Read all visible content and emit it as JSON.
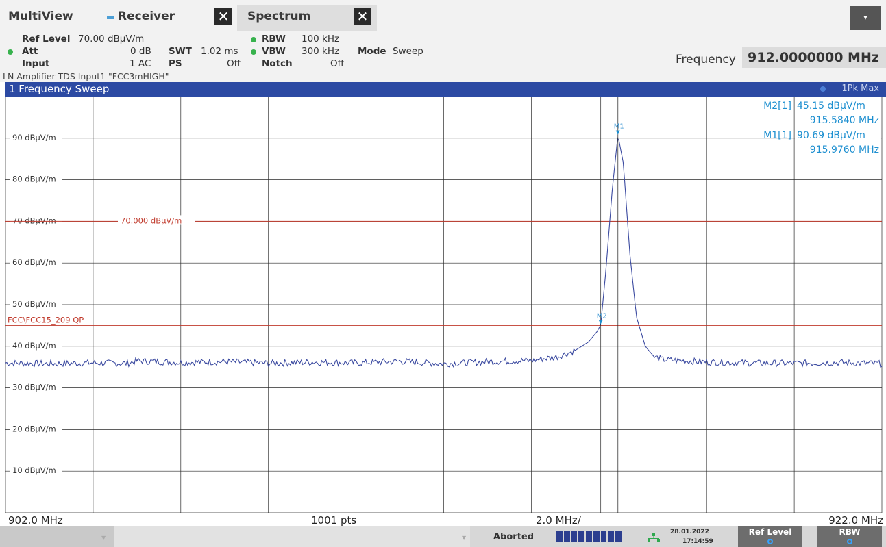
{
  "tabs": {
    "multiview_label": "MultiView",
    "receiver_label": "Receiver",
    "spectrum_label": "Spectrum",
    "close_glyph": "✕",
    "menu_glyph": "▾"
  },
  "settings": {
    "ref_level_label": "Ref Level",
    "ref_level_value": "70.00 dBµV/m",
    "att_label": "Att",
    "att_value": "0 dB",
    "input_label": "Input",
    "input_value": "1 AC",
    "swt_label": "SWT",
    "swt_value": "1.02 ms",
    "ps_label": "PS",
    "ps_value": "Off",
    "rbw_label": "RBW",
    "rbw_value": "100 kHz",
    "vbw_label": "VBW",
    "vbw_value": "300 kHz",
    "notch_label": "Notch",
    "notch_value": "Off",
    "mode_label": "Mode",
    "mode_value": "Sweep",
    "frequency_label": "Frequency",
    "frequency_value": "912.0000000 MHz",
    "info_line": "LN Amplifier TDS Input1 \"FCC3mHIGH\""
  },
  "diagram": {
    "title": "1 Frequency Sweep",
    "trace_label": "1Pk Max",
    "y_labels": [
      "90 dBµV/m",
      "80 dBµV/m",
      "70 dBµV/m",
      "60 dBµV/m",
      "50 dBµV/m",
      "40 dBµV/m",
      "30 dBµV/m",
      "20 dBµV/m",
      "10 dBµV/m"
    ],
    "ref_line_label": "70.000 dBµV/m",
    "limit_line_label": "FCC\\FCC15_209 QP",
    "marker_table": [
      {
        "name": "M2[1]",
        "level": "45.15 dBµV/m",
        "freq": "915.5840 MHz"
      },
      {
        "name": "M1[1]",
        "level": "90.69 dBµV/m",
        "freq": "915.9760 MHz"
      }
    ],
    "marker_labels": [
      "M1",
      "M2"
    ],
    "x_start": "902.0 MHz",
    "points": "1001 pts",
    "span_per_div": "2.0 MHz/",
    "x_stop": "922.0 MHz"
  },
  "chart_data": {
    "type": "line",
    "title": "1 Frequency Sweep",
    "xlabel": "",
    "ylabel": "",
    "xlim": [
      902.0,
      922.0
    ],
    "ylim": [
      0,
      100
    ],
    "x_unit": "MHz",
    "y_unit": "dBµV/m",
    "grid": true,
    "series": [
      {
        "name": "1Pk Max",
        "x": [
          902.0,
          903.0,
          904.0,
          904.8,
          905.0,
          906.0,
          907.0,
          908.0,
          909.0,
          910.0,
          911.0,
          912.0,
          913.0,
          914.0,
          914.6,
          915.0,
          915.3,
          915.5,
          915.584,
          915.7,
          915.85,
          915.976,
          916.1,
          916.25,
          916.4,
          916.6,
          916.8,
          917.0,
          918.0,
          919.0,
          920.0,
          921.0,
          922.0
        ],
        "y": [
          36.0,
          35.8,
          36.0,
          35.9,
          36.5,
          36.1,
          36.3,
          35.9,
          36.2,
          36.0,
          36.4,
          35.8,
          36.3,
          36.6,
          37.5,
          39.0,
          41.0,
          43.5,
          45.15,
          58.0,
          78.0,
          90.69,
          84.0,
          62.0,
          47.0,
          40.0,
          37.5,
          36.8,
          36.2,
          36.0,
          35.9,
          36.1,
          35.8
        ]
      }
    ],
    "ref_line": 70.0,
    "limit_line": 45.0,
    "markers": [
      {
        "name": "M1",
        "x": 915.976,
        "y": 90.69
      },
      {
        "name": "M2",
        "x": 915.584,
        "y": 45.15
      }
    ]
  },
  "status": {
    "aborted_label": "Aborted",
    "date": "28.01.2022",
    "time": "17:14:59",
    "softkey_ref_level": "Ref Level",
    "softkey_rbw": "RBW"
  },
  "colors": {
    "trace": "#3b4aa0",
    "grid": "#2a2a2a",
    "ref_line": "#c0392b",
    "limit_line": "#c0392b",
    "marker": "#1d8fd0",
    "header_bar": "#2c4aa3"
  }
}
